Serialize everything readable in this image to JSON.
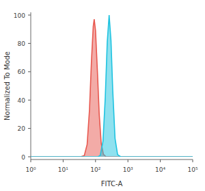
{
  "chart_data": {
    "type": "area",
    "x_label": "FITC-A",
    "y_label": "Normalized To Mode",
    "log": "x",
    "xlim": [
      1,
      100000
    ],
    "xticks": [
      {
        "value": 1,
        "label": "10⁰"
      },
      {
        "value": 10,
        "label": "10¹"
      },
      {
        "value": 100,
        "label": "10²"
      },
      {
        "value": 1000,
        "label": "10³"
      },
      {
        "value": 10000,
        "label": "10⁴"
      },
      {
        "value": 100000,
        "label": "10⁵"
      }
    ],
    "ylim": [
      0,
      100
    ],
    "yticks": [
      0,
      20,
      40,
      60,
      80,
      100
    ],
    "series": [
      {
        "color": "#e8584f",
        "x": [
          1,
          35,
          45,
          55,
          65,
          75,
          85,
          91,
          100,
          115,
          130,
          150,
          175,
          210,
          100000
        ],
        "values": [
          0,
          0,
          0.9,
          8.6,
          33,
          68,
          92,
          97,
          89,
          59,
          30,
          9.4,
          1.8,
          0,
          0
        ]
      },
      {
        "color": "#1fc3e0",
        "x": [
          1,
          120,
          140,
          170,
          200,
          230,
          263,
          300,
          340,
          400,
          480,
          600,
          100000
        ],
        "values": [
          0,
          0,
          1,
          11,
          42,
          81,
          100,
          82,
          47,
          13,
          1.5,
          0,
          0
        ]
      }
    ]
  }
}
